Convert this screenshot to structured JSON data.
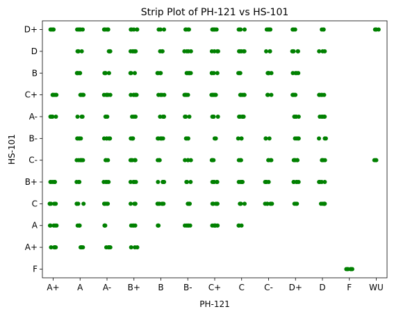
{
  "chart_data": {
    "type": "scatter",
    "title": "Strip Plot of PH-121 vs HS-101",
    "xlabel": "PH-121",
    "ylabel": "HS-101",
    "x_categories": [
      "A+",
      "A",
      "A-",
      "B+",
      "B",
      "B-",
      "C+",
      "C",
      "C-",
      "D+",
      "D",
      "F",
      "WU"
    ],
    "y_categories": [
      "D+",
      "D",
      "B",
      "C+",
      "A-",
      "B-",
      "C-",
      "B+",
      "C",
      "A",
      "A+",
      "F"
    ],
    "grid": false,
    "color": "#008000",
    "series": [
      {
        "points": [
          [
            "A+",
            "D+"
          ],
          [
            "A",
            "D+"
          ],
          [
            "A-",
            "D+"
          ],
          [
            "B+",
            "D+"
          ],
          [
            "B",
            "D+"
          ],
          [
            "B-",
            "D+"
          ],
          [
            "C+",
            "D+"
          ],
          [
            "C",
            "D+"
          ],
          [
            "C-",
            "D+"
          ],
          [
            "D+",
            "D+"
          ],
          [
            "D",
            "D+"
          ],
          [
            "WU",
            "D+"
          ],
          [
            "A",
            "D"
          ],
          [
            "A-",
            "D"
          ],
          [
            "B+",
            "D"
          ],
          [
            "B",
            "D"
          ],
          [
            "B-",
            "D"
          ],
          [
            "C+",
            "D"
          ],
          [
            "C",
            "D"
          ],
          [
            "C-",
            "D"
          ],
          [
            "D+",
            "D"
          ],
          [
            "D",
            "D"
          ],
          [
            "A",
            "B"
          ],
          [
            "A-",
            "B"
          ],
          [
            "B+",
            "B"
          ],
          [
            "B",
            "B"
          ],
          [
            "B-",
            "B"
          ],
          [
            "C+",
            "B"
          ],
          [
            "C",
            "B"
          ],
          [
            "C-",
            "B"
          ],
          [
            "D+",
            "B"
          ],
          [
            "A+",
            "C+"
          ],
          [
            "A",
            "C+"
          ],
          [
            "A-",
            "C+"
          ],
          [
            "B+",
            "C+"
          ],
          [
            "B",
            "C+"
          ],
          [
            "B-",
            "C+"
          ],
          [
            "C+",
            "C+"
          ],
          [
            "C",
            "C+"
          ],
          [
            "C-",
            "C+"
          ],
          [
            "D+",
            "C+"
          ],
          [
            "D",
            "C+"
          ],
          [
            "A+",
            "A-"
          ],
          [
            "A",
            "A-"
          ],
          [
            "A-",
            "A-"
          ],
          [
            "B+",
            "A-"
          ],
          [
            "B",
            "A-"
          ],
          [
            "B-",
            "A-"
          ],
          [
            "C+",
            "A-"
          ],
          [
            "C",
            "A-"
          ],
          [
            "D+",
            "A-"
          ],
          [
            "D",
            "A-"
          ],
          [
            "A",
            "B-"
          ],
          [
            "A-",
            "B-"
          ],
          [
            "B+",
            "B-"
          ],
          [
            "B",
            "B-"
          ],
          [
            "B-",
            "B-"
          ],
          [
            "C+",
            "B-"
          ],
          [
            "C",
            "B-"
          ],
          [
            "C-",
            "B-"
          ],
          [
            "D+",
            "B-"
          ],
          [
            "D",
            "B-"
          ],
          [
            "A",
            "C-"
          ],
          [
            "A-",
            "C-"
          ],
          [
            "B+",
            "C-"
          ],
          [
            "B",
            "C-"
          ],
          [
            "B-",
            "C-"
          ],
          [
            "C+",
            "C-"
          ],
          [
            "C",
            "C-"
          ],
          [
            "C-",
            "C-"
          ],
          [
            "D+",
            "C-"
          ],
          [
            "D",
            "C-"
          ],
          [
            "WU",
            "C-"
          ],
          [
            "A+",
            "B+"
          ],
          [
            "A",
            "B+"
          ],
          [
            "A-",
            "B+"
          ],
          [
            "B+",
            "B+"
          ],
          [
            "B",
            "B+"
          ],
          [
            "B-",
            "B+"
          ],
          [
            "C+",
            "B+"
          ],
          [
            "C",
            "B+"
          ],
          [
            "C-",
            "B+"
          ],
          [
            "D+",
            "B+"
          ],
          [
            "D",
            "B+"
          ],
          [
            "A+",
            "C"
          ],
          [
            "A",
            "C"
          ],
          [
            "A-",
            "C"
          ],
          [
            "B+",
            "C"
          ],
          [
            "B",
            "C"
          ],
          [
            "B-",
            "C"
          ],
          [
            "C+",
            "C"
          ],
          [
            "C",
            "C"
          ],
          [
            "C-",
            "C"
          ],
          [
            "D+",
            "C"
          ],
          [
            "D",
            "C"
          ],
          [
            "A+",
            "A"
          ],
          [
            "A",
            "A"
          ],
          [
            "A-",
            "A"
          ],
          [
            "B+",
            "A"
          ],
          [
            "B",
            "A"
          ],
          [
            "B-",
            "A"
          ],
          [
            "C+",
            "A"
          ],
          [
            "C",
            "A"
          ],
          [
            "A+",
            "A+"
          ],
          [
            "A",
            "A+"
          ],
          [
            "A-",
            "A+"
          ],
          [
            "B+",
            "A+"
          ],
          [
            "F",
            "F"
          ]
        ]
      }
    ]
  }
}
